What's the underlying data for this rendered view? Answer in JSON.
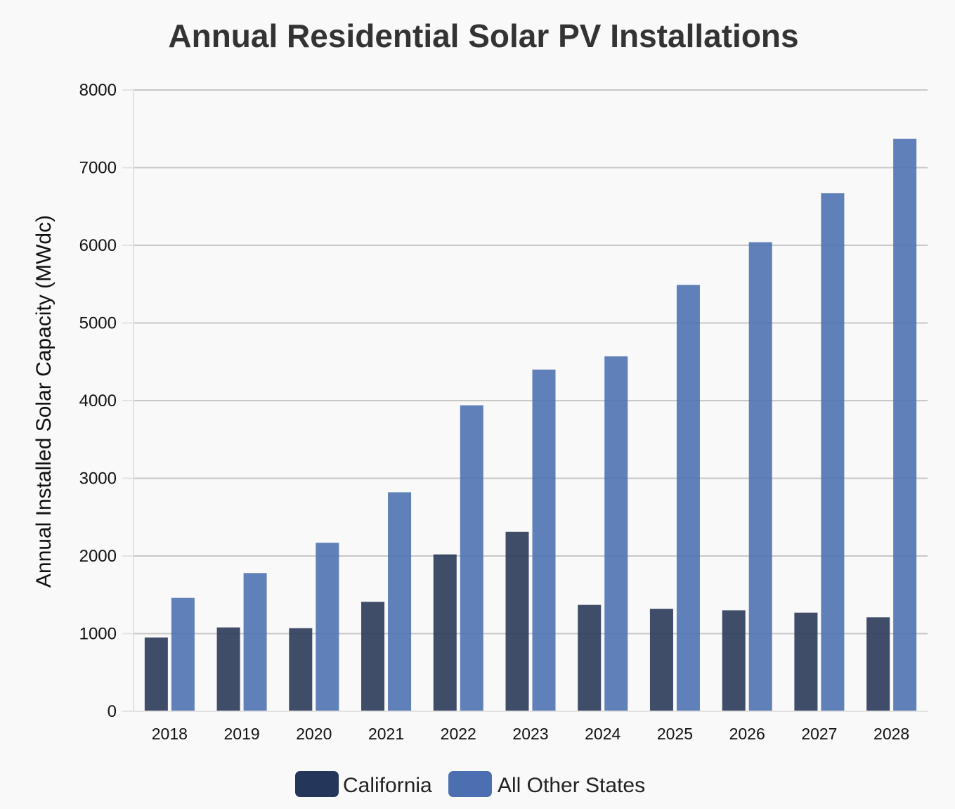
{
  "chart_data": {
    "type": "bar",
    "title": "Annual Residential Solar PV Installations",
    "xlabel": "",
    "ylabel": "Annual Installed Solar Capacity (MWdc)",
    "categories": [
      "2018",
      "2019",
      "2020",
      "2021",
      "2022",
      "2023",
      "2024",
      "2025",
      "2026",
      "2027",
      "2028"
    ],
    "series": [
      {
        "name": "California",
        "color": "#2b3a59",
        "values": [
          950,
          1080,
          1070,
          1410,
          2020,
          2310,
          1370,
          1320,
          1300,
          1270,
          1210
        ]
      },
      {
        "name": "All Other States",
        "color": "#4e72b0",
        "values": [
          1460,
          1780,
          2170,
          2820,
          3940,
          4400,
          4570,
          5490,
          6040,
          6670,
          7370
        ]
      }
    ],
    "ylim": [
      0,
      8000
    ],
    "yticks": [
      0,
      1000,
      2000,
      3000,
      4000,
      5000,
      6000,
      7000,
      8000
    ],
    "grid": true,
    "legend_position": "bottom-center"
  },
  "colors": {
    "background": "#f9f9f9",
    "grid": "#c8c8c8",
    "axis": "#e2e2e2",
    "legend_california": "#24375a",
    "legend_other": "#4c6fb1"
  }
}
